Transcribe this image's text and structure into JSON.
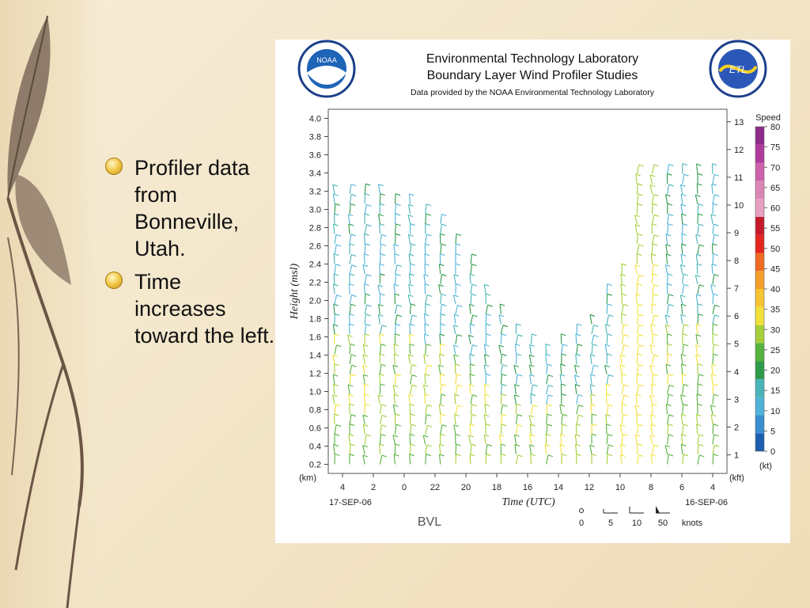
{
  "slide": {
    "bullets": [
      "Profiler data from Bonneville, Utah.",
      "Time increases toward the left."
    ]
  },
  "header": {
    "title_line1": "Environmental Technology Laboratory",
    "title_line2": "Boundary Layer Wind Profiler Studies",
    "subtitle": "Data provided by the NOAA Environmental Technology Laboratory",
    "left_logo_text": "NOAA",
    "right_logo_text": "ETL"
  },
  "chart_data": {
    "type": "wind-barb time-height plot",
    "ylabel": "Height (msl)",
    "y_unit_left": "(km)",
    "y_ticks_km": [
      "0.2",
      "0.4",
      "0.6",
      "0.8",
      "1.0",
      "1.2",
      "1.4",
      "1.6",
      "1.8",
      "2.0",
      "2.2",
      "2.4",
      "2.6",
      "2.8",
      "3.0",
      "3.2",
      "3.4",
      "3.6",
      "3.8",
      "4.0"
    ],
    "y_unit_right": "(kft)",
    "y_ticks_kft": [
      "1",
      "2",
      "3",
      "4",
      "5",
      "6",
      "7",
      "8",
      "9",
      "10",
      "11",
      "12",
      "13"
    ],
    "xlabel": "Time (UTC)",
    "x_ticks": [
      "4",
      "2",
      "0",
      "22",
      "20",
      "18",
      "16",
      "14",
      "12",
      "10",
      "8",
      "6",
      "4"
    ],
    "date_left": "17-SEP-06",
    "date_right": "16-SEP-06",
    "station": "BVL",
    "colorbar": {
      "title": "Speed",
      "unit": "(kt)",
      "levels": [
        "0",
        "5",
        "10",
        "15",
        "20",
        "25",
        "30",
        "35",
        "40",
        "45",
        "50",
        "55",
        "60",
        "65",
        "70",
        "75",
        "80"
      ],
      "colors": [
        "#1c5fb0",
        "#3a8fd0",
        "#4fb3d8",
        "#48b3b8",
        "#2e9b4a",
        "#57b23e",
        "#a6cf3a",
        "#f2e13a",
        "#f7c531",
        "#f59f2a",
        "#ef6b22",
        "#e5261f",
        "#c41a2a",
        "#e7a0c0",
        "#dd85b6",
        "#cf62ac",
        "#b03a9e",
        "#8e2a8a"
      ]
    },
    "barb_key": {
      "values": [
        "0",
        "5",
        "10",
        "50"
      ],
      "unit": "knots"
    }
  }
}
